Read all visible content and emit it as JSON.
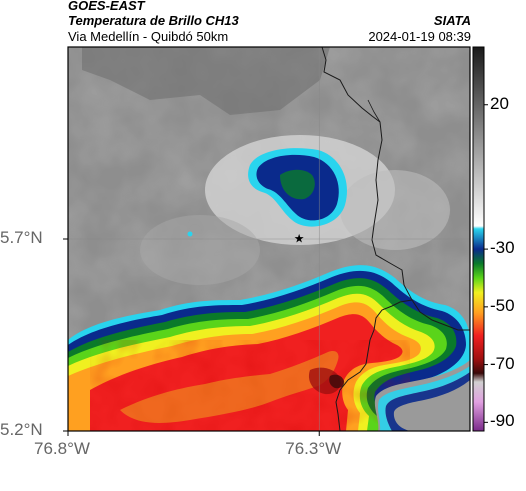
{
  "header": {
    "satellite": "GOES-EAST",
    "product": "Temperatura de Brillo CH13",
    "region": "Via Medellín - Quibdó 50km",
    "agency": "SIATA",
    "datetime": "2024-01-19 08:39"
  },
  "axes": {
    "x_ticks": [
      {
        "value": -76.8,
        "label": "76.8°W"
      },
      {
        "value": -76.3,
        "label": "76.3°W"
      }
    ],
    "y_ticks": [
      {
        "value": 5.7,
        "label": "5.7°N"
      },
      {
        "value": 5.2,
        "label": "5.2°N"
      }
    ],
    "lon_range": [
      -76.8,
      -76.0
    ],
    "lat_range": [
      5.2,
      6.2
    ],
    "grid": true
  },
  "colorbar": {
    "ticks": [
      {
        "value": 20,
        "label": "20"
      },
      {
        "value": -30,
        "label": "-30"
      },
      {
        "value": -50,
        "label": "-50"
      },
      {
        "value": -70,
        "label": "-70"
      },
      {
        "value": -90,
        "label": "-90"
      }
    ],
    "range": [
      -93,
      40
    ],
    "stops": [
      {
        "value": 40,
        "color": "#1a1a1a"
      },
      {
        "value": 10,
        "color": "#8a8a8a"
      },
      {
        "value": -22,
        "color": "#ffffff"
      },
      {
        "value": -23,
        "color": "#29d4ee"
      },
      {
        "value": -30,
        "color": "#0a2a8c"
      },
      {
        "value": -35,
        "color": "#0a7a2a"
      },
      {
        "value": -40,
        "color": "#5ad41a"
      },
      {
        "value": -45,
        "color": "#f0f020"
      },
      {
        "value": -52,
        "color": "#ffa020"
      },
      {
        "value": -60,
        "color": "#f02020"
      },
      {
        "value": -68,
        "color": "#a01010"
      },
      {
        "value": -73,
        "color": "#3a0a0a"
      },
      {
        "value": -76,
        "color": "#d0d0d0"
      },
      {
        "value": -83,
        "color": "#e0a0e0"
      },
      {
        "value": -93,
        "color": "#7a2a8a"
      }
    ]
  },
  "marker": {
    "name": "star-marker",
    "lon": -76.34,
    "lat": 5.7
  },
  "colors": {
    "cloud_gray": "#8c8c8c",
    "border": "#000000"
  }
}
